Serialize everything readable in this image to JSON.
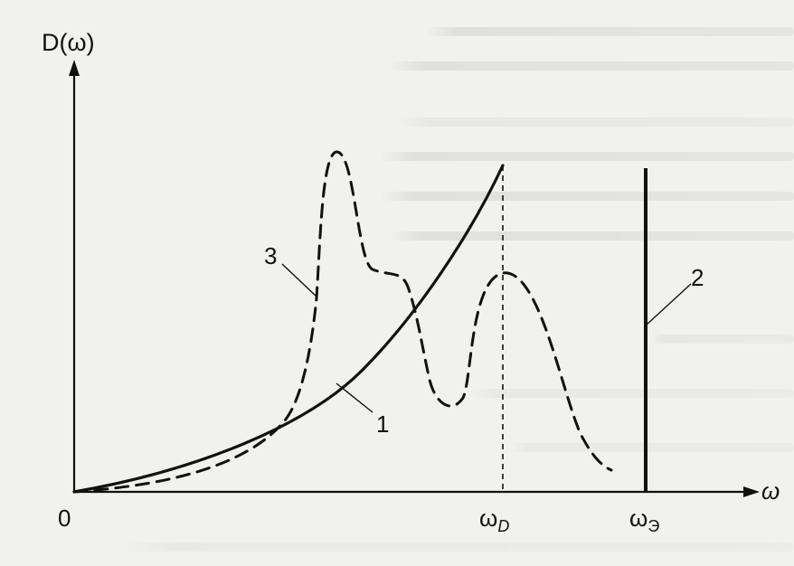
{
  "y_axis_label": "D(ω)",
  "x_axis_label": "ω",
  "origin_label": "0",
  "tick_labels": {
    "omega_D": {
      "base": "ω",
      "sub": "D"
    },
    "omega_E": {
      "base": "ω",
      "sub": "Э"
    }
  },
  "curve_labels": {
    "curve1": "1",
    "curve2": "2",
    "curve3": "3"
  }
}
